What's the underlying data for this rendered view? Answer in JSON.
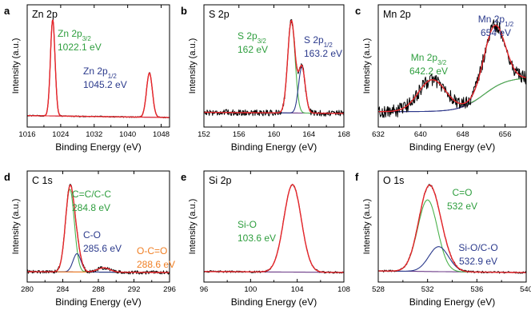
{
  "figure": {
    "xlabel": "Binding Energy (eV)",
    "ylabel": "Intensity (a.u.)"
  },
  "chart_data": [
    {
      "type": "line",
      "panel": "a",
      "title": "Zn 2p",
      "xlabel": "Binding Energy (eV)",
      "ylabel": "Intensity (a.u.)",
      "xlim": [
        1016,
        1050
      ],
      "xticks": [
        1016,
        1024,
        1032,
        1040,
        1048
      ],
      "background": [
        0.03,
        0.01
      ],
      "noise": 0.006,
      "components": [
        {
          "center": 1022.1,
          "amp": 1.0,
          "width": 0.55,
          "color": "#e8262b"
        },
        {
          "center": 1045.2,
          "amp": 0.46,
          "width": 0.7,
          "color": "#e8262b"
        }
      ],
      "annotations": [
        {
          "lines": [
            "Zn 2p",
            "3/2",
            "1022.1 eV"
          ],
          "color": "#2e9e3e"
        },
        {
          "lines": [
            "Zn 2p",
            "1/2",
            "1045.2 eV"
          ],
          "color": "#2b3a8c"
        }
      ]
    },
    {
      "type": "line",
      "panel": "b",
      "title": "S 2p",
      "xlabel": "Binding Energy (eV)",
      "ylabel": "Intensity (a.u.)",
      "xlim": [
        152,
        168
      ],
      "xticks": [
        152,
        156,
        160,
        164,
        168
      ],
      "background": [
        0.06,
        0.05
      ],
      "noise": 0.03,
      "components": [
        {
          "center": 162.0,
          "amp": 0.9,
          "width": 0.42,
          "color": "#4bb24d"
        },
        {
          "center": 163.2,
          "amp": 0.45,
          "width": 0.38,
          "color": "#2b3a8c"
        }
      ],
      "annotations": [
        {
          "lines": [
            "S 2p",
            "3/2",
            "162 eV"
          ],
          "color": "#2e9e3e"
        },
        {
          "lines": [
            "S 2p",
            "1/2",
            "163.2 eV"
          ],
          "color": "#2b3a8c"
        }
      ]
    },
    {
      "type": "line",
      "panel": "c",
      "title": "Mn 2p",
      "xlabel": "Binding Energy (eV)",
      "ylabel": "Intensity (a.u.)",
      "xlim": [
        632,
        660
      ],
      "xticks": [
        632,
        640,
        648,
        656
      ],
      "background": [
        0.05,
        0.3
      ],
      "noise": 0.05,
      "components": [
        {
          "center": 642.2,
          "amp": 0.23,
          "width": 2.6,
          "color": "#4bb24d"
        },
        {
          "center": 654.0,
          "amp": 0.45,
          "width": 2.0,
          "color": "#2b3a8c"
        }
      ],
      "annotations": [
        {
          "lines": [
            "Mn 2p",
            "1/2",
            "654 eV"
          ],
          "color": "#2b3a8c"
        },
        {
          "lines": [
            "Mn 2p",
            "3/2",
            "642.2 eV"
          ],
          "color": "#2e9e3e"
        }
      ]
    },
    {
      "type": "line",
      "panel": "d",
      "title": "C 1s",
      "xlabel": "Binding Energy (eV)",
      "ylabel": "Intensity (a.u.)",
      "xlim": [
        280,
        296
      ],
      "xticks": [
        280,
        284,
        288,
        292,
        296
      ],
      "background": [
        0.03,
        0.02
      ],
      "noise": 0.02,
      "components": [
        {
          "center": 284.8,
          "amp": 0.95,
          "width": 0.5,
          "color": "#4bb24d"
        },
        {
          "center": 285.6,
          "amp": 0.21,
          "width": 0.45,
          "color": "#2b3a8c"
        },
        {
          "center": 288.6,
          "amp": 0.05,
          "width": 0.7,
          "color": "#f07f24"
        }
      ],
      "annotations": [
        {
          "lines": [
            "C=C/C-C",
            "284.8 eV"
          ],
          "color": "#2e9e3e"
        },
        {
          "lines": [
            "C-O",
            "285.6 eV"
          ],
          "color": "#2b3a8c"
        },
        {
          "lines": [
            "O-C=O",
            "288.6 eV"
          ],
          "color": "#f07f24"
        }
      ]
    },
    {
      "type": "line",
      "panel": "e",
      "title": "Si 2p",
      "xlabel": "Binding Energy (eV)",
      "ylabel": "Intensity (a.u.)",
      "xlim": [
        96,
        108
      ],
      "xticks": [
        96,
        100,
        104,
        108
      ],
      "background": [
        0.03,
        0.02
      ],
      "noise": 0.01,
      "components": [
        {
          "center": 103.6,
          "amp": 0.95,
          "width": 0.75,
          "color": "#e8262b"
        }
      ],
      "annotations": [
        {
          "lines": [
            "Si-O",
            "103.6 eV"
          ],
          "color": "#2e9e3e"
        }
      ]
    },
    {
      "type": "line",
      "panel": "f",
      "title": "O 1s",
      "xlabel": "Binding Energy (eV)",
      "ylabel": "Intensity (a.u.)",
      "xlim": [
        528,
        540
      ],
      "xticks": [
        528,
        532,
        536,
        540
      ],
      "background": [
        0.04,
        0.02
      ],
      "noise": 0.012,
      "components": [
        {
          "center": 532.0,
          "amp": 0.86,
          "width": 0.8,
          "color": "#4bb24d"
        },
        {
          "center": 532.9,
          "amp": 0.3,
          "width": 0.8,
          "color": "#2b3a8c"
        }
      ],
      "annotations": [
        {
          "lines": [
            "C=O",
            "532 eV"
          ],
          "color": "#2e9e3e"
        },
        {
          "lines": [
            "Si-O/C-O",
            "532.9 eV"
          ],
          "color": "#2b3a8c"
        }
      ]
    }
  ]
}
